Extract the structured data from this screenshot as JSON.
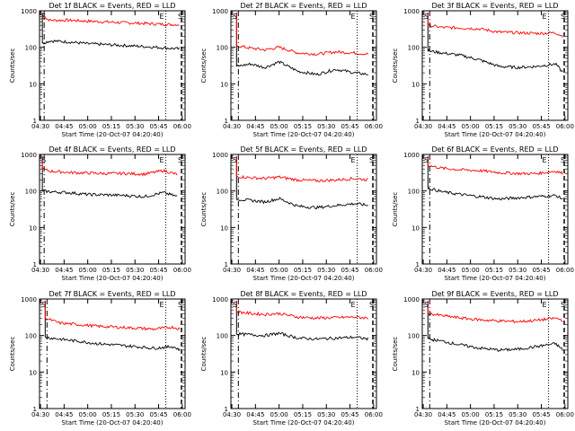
{
  "chart_data": {
    "type": "line",
    "scale": "log",
    "ylim": [
      1,
      1000
    ],
    "xlim_hours": [
      4.49,
      6.03
    ],
    "ylabel": "Counts/sec",
    "xlabel": "Start Time (20-Oct-07 04:20:40)",
    "tick_labels": [
      "04:30",
      "04:45",
      "05:00",
      "05:15",
      "05:30",
      "05:45",
      "06:00"
    ],
    "y_tick_labels": [
      "1",
      "10",
      "100",
      "1000"
    ],
    "markers": {
      "start": "S",
      "end": "E"
    },
    "colors": {
      "events": "#000000",
      "lld": "#ff0000"
    },
    "panels": [
      {
        "title": "Det 1f BLACK = Events, RED = LLD",
        "black": [
          [
            4.52,
            130
          ],
          [
            4.6,
            150
          ],
          [
            4.8,
            140
          ],
          [
            5.0,
            125
          ],
          [
            5.3,
            115
          ],
          [
            5.6,
            105
          ],
          [
            5.85,
            95
          ],
          [
            5.97,
            90
          ]
        ],
        "red": [
          [
            4.52,
            700
          ],
          [
            4.6,
            550
          ],
          [
            4.8,
            550
          ],
          [
            5.0,
            520
          ],
          [
            5.3,
            480
          ],
          [
            5.6,
            450
          ],
          [
            5.85,
            420
          ],
          [
            5.97,
            420
          ]
        ]
      },
      {
        "title": "Det 2f BLACK = Events, RED = LLD",
        "black": [
          [
            4.55,
            30
          ],
          [
            4.7,
            35
          ],
          [
            4.85,
            28
          ],
          [
            5.0,
            40
          ],
          [
            5.2,
            22
          ],
          [
            5.4,
            18
          ],
          [
            5.6,
            25
          ],
          [
            5.8,
            20
          ],
          [
            5.95,
            18
          ]
        ],
        "red": [
          [
            4.55,
            110
          ],
          [
            4.7,
            95
          ],
          [
            4.85,
            85
          ],
          [
            5.0,
            100
          ],
          [
            5.2,
            70
          ],
          [
            5.4,
            65
          ],
          [
            5.6,
            75
          ],
          [
            5.8,
            70
          ],
          [
            5.95,
            65
          ]
        ]
      },
      {
        "title": "Det 3f BLACK = Events, RED = LLD",
        "black": [
          [
            4.55,
            80
          ],
          [
            4.7,
            70
          ],
          [
            4.9,
            60
          ],
          [
            5.1,
            45
          ],
          [
            5.3,
            30
          ],
          [
            5.5,
            28
          ],
          [
            5.7,
            30
          ],
          [
            5.9,
            35
          ],
          [
            5.98,
            20
          ]
        ],
        "red": [
          [
            4.55,
            400
          ],
          [
            4.7,
            350
          ],
          [
            4.9,
            340
          ],
          [
            5.1,
            320
          ],
          [
            5.3,
            260
          ],
          [
            5.5,
            250
          ],
          [
            5.7,
            240
          ],
          [
            5.9,
            250
          ],
          [
            5.98,
            200
          ]
        ]
      },
      {
        "title": "Det 4f BLACK = Events, RED = LLD",
        "black": [
          [
            4.52,
            100
          ],
          [
            4.6,
            95
          ],
          [
            4.8,
            90
          ],
          [
            5.0,
            80
          ],
          [
            5.2,
            78
          ],
          [
            5.4,
            75
          ],
          [
            5.6,
            70
          ],
          [
            5.8,
            90
          ],
          [
            5.95,
            70
          ]
        ],
        "red": [
          [
            4.52,
            400
          ],
          [
            4.6,
            350
          ],
          [
            4.8,
            320
          ],
          [
            5.0,
            310
          ],
          [
            5.2,
            300
          ],
          [
            5.4,
            300
          ],
          [
            5.6,
            290
          ],
          [
            5.8,
            360
          ],
          [
            5.95,
            280
          ]
        ]
      },
      {
        "title": "Det 5f BLACK = Events, RED = LLD",
        "black": [
          [
            4.55,
            60
          ],
          [
            4.7,
            55
          ],
          [
            4.85,
            50
          ],
          [
            5.0,
            62
          ],
          [
            5.2,
            38
          ],
          [
            5.4,
            35
          ],
          [
            5.6,
            40
          ],
          [
            5.8,
            45
          ],
          [
            5.95,
            40
          ]
        ],
        "red": [
          [
            4.55,
            250
          ],
          [
            4.7,
            230
          ],
          [
            4.85,
            220
          ],
          [
            5.0,
            240
          ],
          [
            5.2,
            200
          ],
          [
            5.4,
            190
          ],
          [
            5.6,
            200
          ],
          [
            5.8,
            220
          ],
          [
            5.95,
            200
          ]
        ]
      },
      {
        "title": "Det 6f BLACK = Events, RED = LLD",
        "black": [
          [
            4.55,
            120
          ],
          [
            4.7,
            95
          ],
          [
            4.9,
            80
          ],
          [
            5.1,
            70
          ],
          [
            5.3,
            60
          ],
          [
            5.5,
            65
          ],
          [
            5.7,
            70
          ],
          [
            5.9,
            75
          ],
          [
            5.98,
            60
          ]
        ],
        "red": [
          [
            4.55,
            500
          ],
          [
            4.7,
            420
          ],
          [
            4.9,
            380
          ],
          [
            5.1,
            360
          ],
          [
            5.3,
            320
          ],
          [
            5.5,
            300
          ],
          [
            5.7,
            300
          ],
          [
            5.9,
            350
          ],
          [
            5.98,
            300
          ]
        ]
      },
      {
        "title": "Det 7f BLACK = Events, RED = LLD",
        "black": [
          [
            4.55,
            90
          ],
          [
            4.7,
            80
          ],
          [
            4.9,
            70
          ],
          [
            5.1,
            60
          ],
          [
            5.3,
            55
          ],
          [
            5.5,
            50
          ],
          [
            5.7,
            45
          ],
          [
            5.9,
            50
          ],
          [
            5.98,
            40
          ]
        ],
        "red": [
          [
            4.55,
            300
          ],
          [
            4.7,
            220
          ],
          [
            4.9,
            200
          ],
          [
            5.1,
            180
          ],
          [
            5.3,
            170
          ],
          [
            5.5,
            160
          ],
          [
            5.7,
            150
          ],
          [
            5.9,
            170
          ],
          [
            5.98,
            150
          ]
        ]
      },
      {
        "title": "Det 8f BLACK = Events, RED = LLD",
        "black": [
          [
            4.55,
            110
          ],
          [
            4.7,
            105
          ],
          [
            4.85,
            100
          ],
          [
            5.0,
            115
          ],
          [
            5.2,
            85
          ],
          [
            5.4,
            80
          ],
          [
            5.6,
            85
          ],
          [
            5.8,
            90
          ],
          [
            5.95,
            80
          ]
        ],
        "red": [
          [
            4.55,
            450
          ],
          [
            4.7,
            400
          ],
          [
            4.85,
            380
          ],
          [
            5.0,
            400
          ],
          [
            5.2,
            320
          ],
          [
            5.4,
            300
          ],
          [
            5.6,
            310
          ],
          [
            5.8,
            320
          ],
          [
            5.95,
            300
          ]
        ]
      },
      {
        "title": "Det 9f BLACK = Events, RED = LLD",
        "black": [
          [
            4.55,
            80
          ],
          [
            4.7,
            70
          ],
          [
            4.9,
            55
          ],
          [
            5.1,
            45
          ],
          [
            5.3,
            40
          ],
          [
            5.5,
            42
          ],
          [
            5.7,
            50
          ],
          [
            5.9,
            60
          ],
          [
            5.98,
            40
          ]
        ],
        "red": [
          [
            4.55,
            400
          ],
          [
            4.7,
            350
          ],
          [
            4.9,
            300
          ],
          [
            5.1,
            270
          ],
          [
            5.3,
            250
          ],
          [
            5.5,
            240
          ],
          [
            5.7,
            260
          ],
          [
            5.9,
            300
          ],
          [
            5.98,
            260
          ]
        ]
      }
    ]
  }
}
